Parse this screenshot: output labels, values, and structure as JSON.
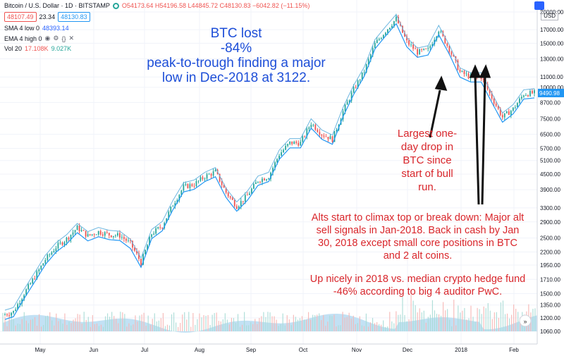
{
  "header": {
    "symbol": "Bitcoin / U.S. Dollar · 1D · BITSTAMP",
    "ohlc": "O54173.64 H54196.58 L44845.72 C48130.83 −6042.82 (−11.15%)",
    "bid": "48107.49",
    "spread": "23.34",
    "ask": "48130.83",
    "currency": "USD"
  },
  "indicators": {
    "sma_label": "SMA 4 low 0",
    "sma_value": "48393.14",
    "ema_label": "EMA 4 high 0",
    "vol_label": "Vol 20",
    "vol_value1": "17.108K",
    "vol_value2": "9.027K"
  },
  "annotations": {
    "btc_lost": "BTC lost\n-84%\npeak-to-trough finding a major\nlow in Dec-2018 at 3122.",
    "largest_drop": "Largest one-\nday drop in\nBTC since\nstart of bull\nrun.",
    "alts": "Alts start to climax top or break down: Major alt\nsell signals in Jan-2018. Back in cash by Jan\n30, 2018 except small core positions in BTC\nand 2 alt coins.",
    "hedge": "Up nicely in 2018 vs. median crypto hedge fund\n-46% according to big 4 auditor PwC."
  },
  "colors": {
    "up": "#26a69a",
    "down": "#ef5350",
    "sma": "#2196f3",
    "ema": "#6cb6e0",
    "volume_area": "#b7dcf2",
    "annotation_blue": "#1e4fd8",
    "annotation_red": "#d9262b"
  },
  "chart_data": {
    "type": "line",
    "scale": "log",
    "price_axis_ticks": [
      20000,
      17000,
      15000,
      13000,
      11000,
      10000,
      8700,
      7500,
      6500,
      5700,
      5100,
      4500,
      3900,
      3300,
      2900,
      2500,
      2200,
      1950,
      1710,
      1500,
      1350,
      1200,
      1060
    ],
    "x_tick_labels": [
      "May",
      "Jun",
      "Jul",
      "Aug",
      "Sep",
      "Oct",
      "Nov",
      "Dec",
      "2018",
      "Feb"
    ],
    "last_price_label": "9490.98",
    "series": [
      {
        "x": [
          "Apr 20",
          "Apr 27",
          "May 4",
          "May 11",
          "May 18",
          "May 25",
          "Jun 1",
          "Jun 8",
          "Jun 15",
          "Jun 22",
          "Jun 29",
          "Jul 6",
          "Jul 13",
          "Jul 17",
          "Jul 24",
          "Jul 31",
          "Aug 7",
          "Aug 14",
          "Aug 21",
          "Aug 28",
          "Sep 4",
          "Sep 11",
          "Sep 15",
          "Sep 22",
          "Sep 29",
          "Oct 6",
          "Oct 13",
          "Oct 20",
          "Oct 27",
          "Nov 3",
          "Nov 10",
          "Nov 13",
          "Nov 20",
          "Nov 27",
          "Dec 4",
          "Dec 8",
          "Dec 12",
          "Dec 17",
          "Dec 22",
          "Dec 26",
          "Jan 1",
          "Jan 6",
          "Jan 10",
          "Jan 16",
          "Jan 22",
          "Jan 28",
          "Feb 1",
          "Feb 6",
          "Feb 10",
          "Feb 16",
          "Feb 20"
        ],
        "values": [
          1230,
          1270,
          1500,
          1750,
          2050,
          2300,
          2480,
          2750,
          2550,
          2650,
          2580,
          2560,
          2380,
          2000,
          2600,
          2800,
          3400,
          4000,
          4100,
          4400,
          4600,
          3800,
          3350,
          3700,
          4250,
          4400,
          5400,
          6000,
          6000,
          7200,
          6500,
          6200,
          8000,
          9800,
          11600,
          14900,
          16800,
          18800,
          15200,
          13800,
          14100,
          17000,
          14200,
          11500,
          11000,
          11000,
          9100,
          7600,
          8200,
          9400,
          9500
        ]
      }
    ]
  }
}
